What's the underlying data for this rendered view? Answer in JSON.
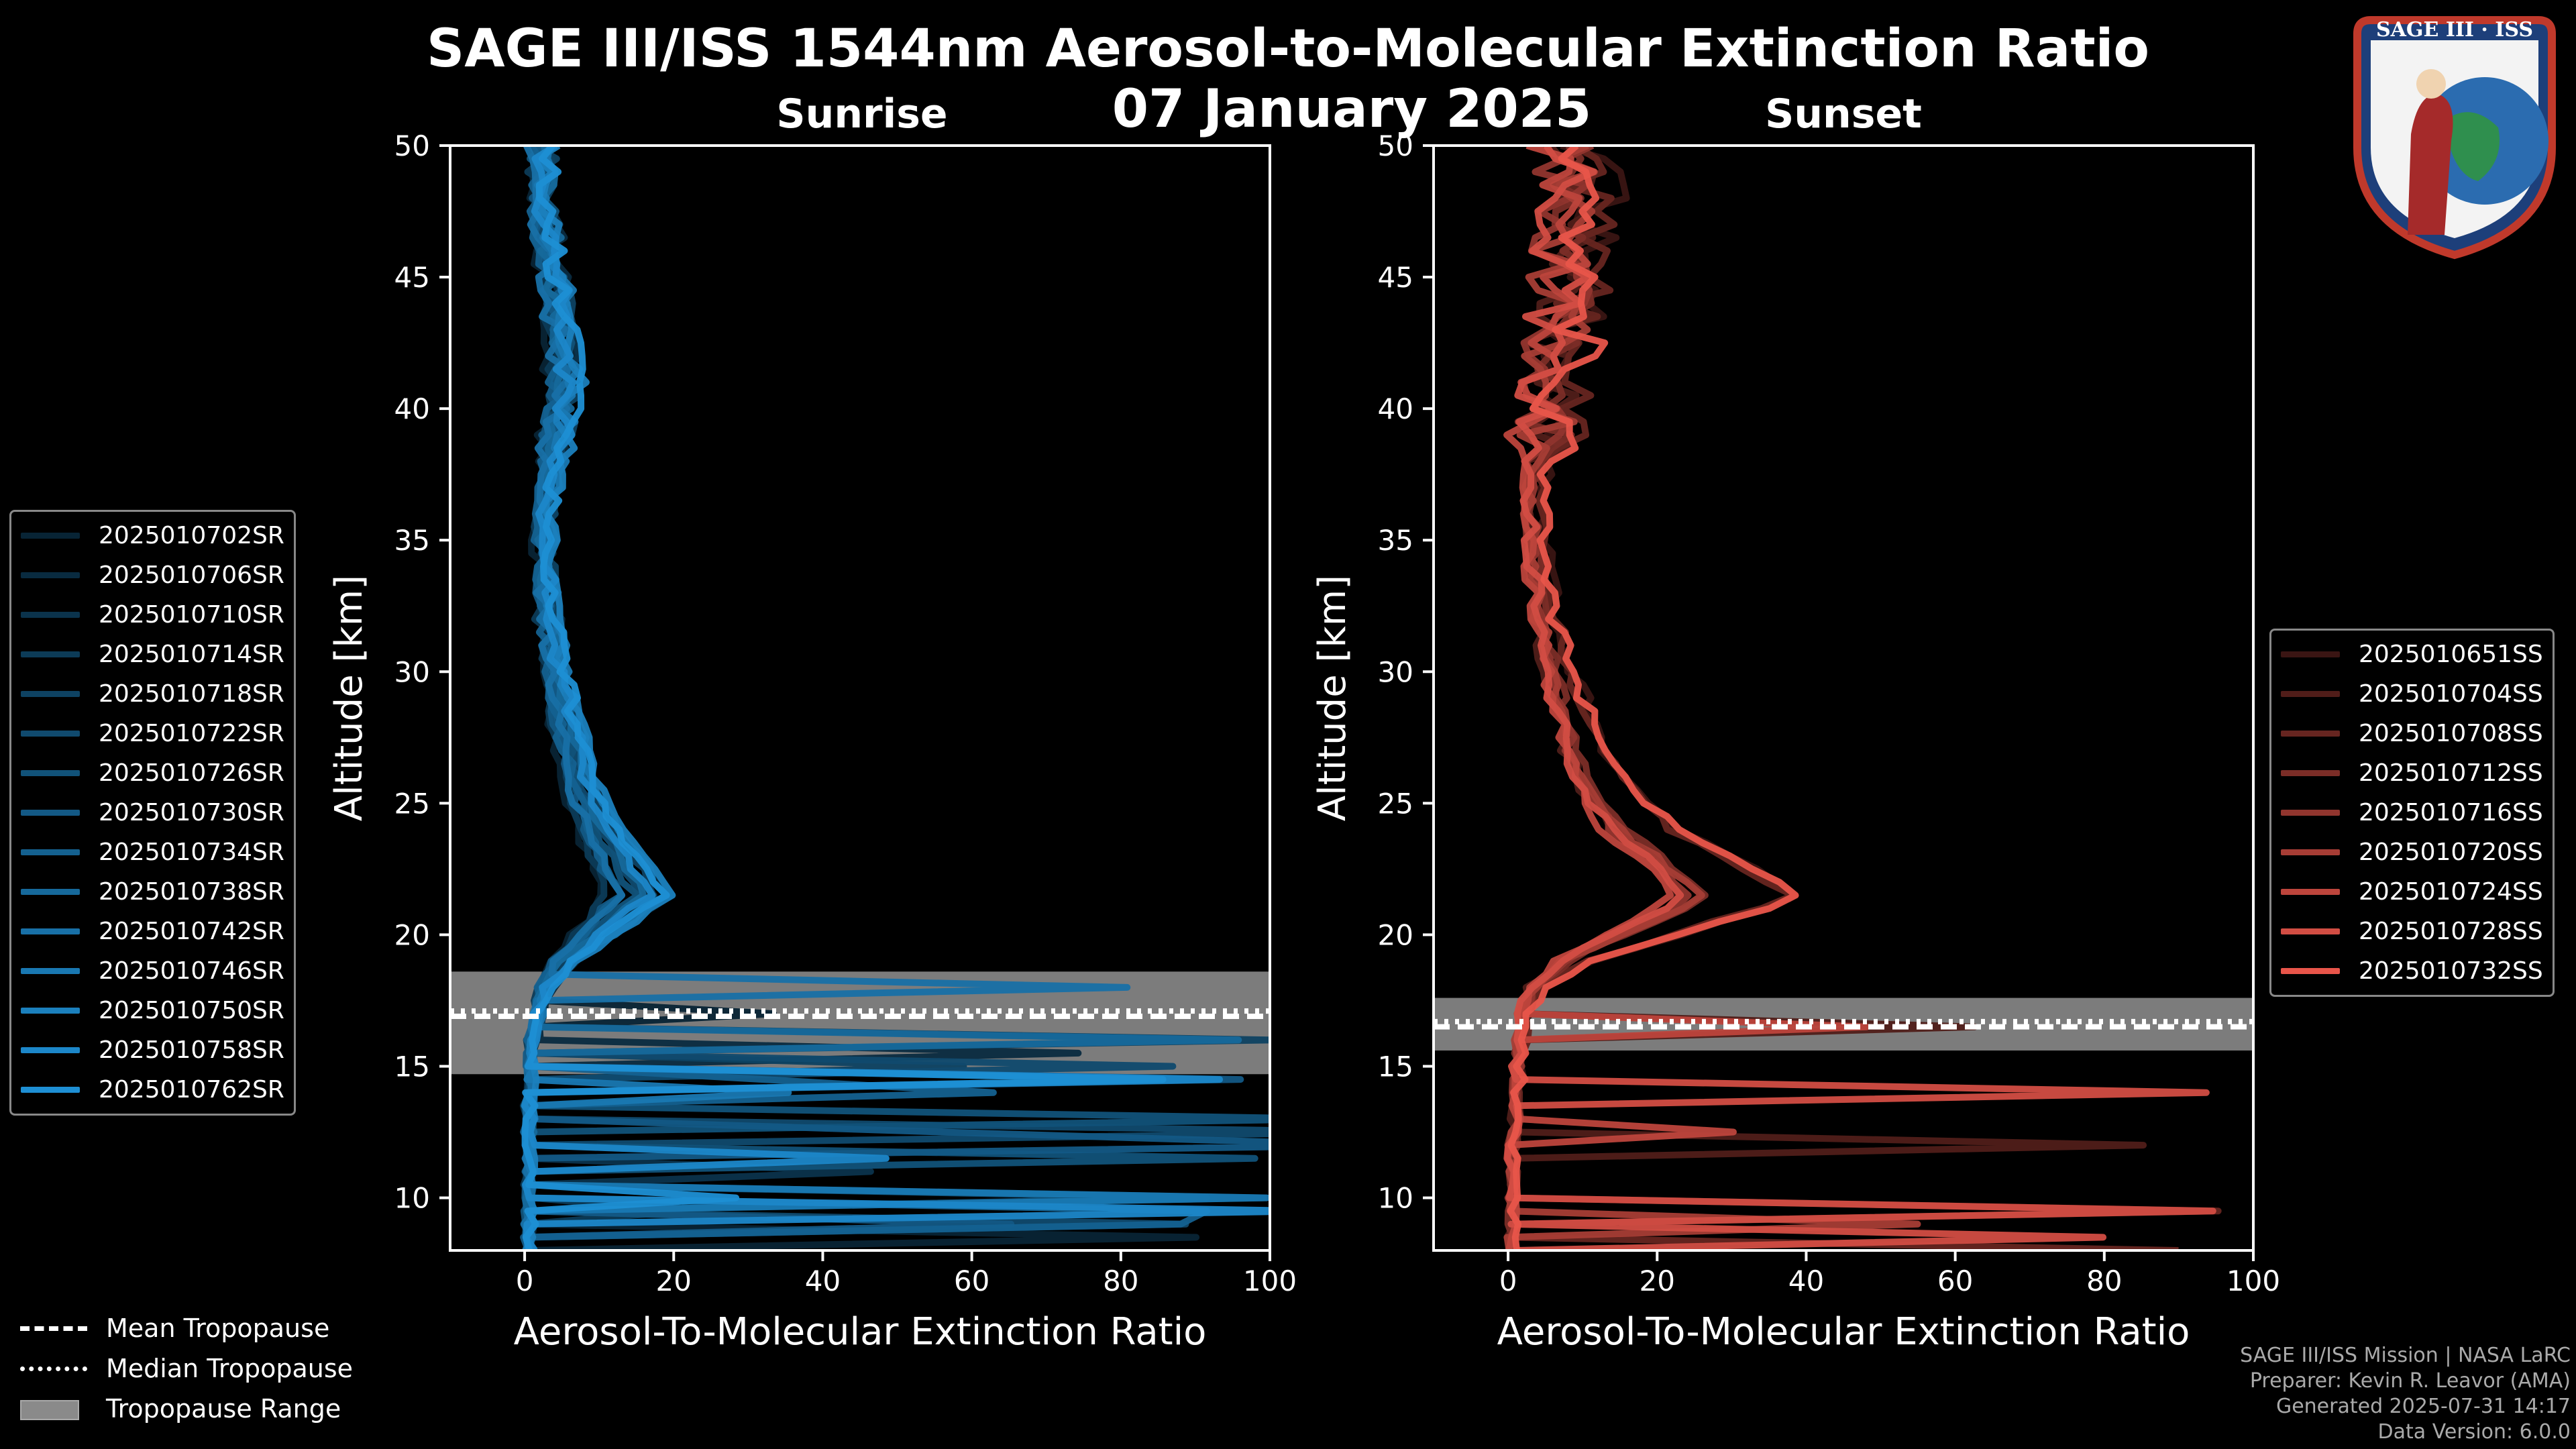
{
  "title": "SAGE III/ISS 1544nm Aerosol-to-Molecular Extinction Ratio",
  "date": "07 January 2025",
  "logo": {
    "name": "SAGE III · ISS"
  },
  "chart_data": [
    {
      "type": "line",
      "subtitle": "Sunrise",
      "xlabel": "Aerosol-To-Molecular Extinction Ratio",
      "ylabel": "Altitude [km]",
      "xlim": [
        -10,
        100
      ],
      "ylim": [
        8,
        50
      ],
      "xticks": [
        "0",
        "20",
        "40",
        "60",
        "80",
        "100"
      ],
      "yticks": [
        "10",
        "15",
        "20",
        "25",
        "30",
        "35",
        "40",
        "45",
        "50"
      ],
      "series_color": "#1e8fd4",
      "tropopause": {
        "mean_km": 16.9,
        "median_km": 17.1,
        "range_km": [
          14.7,
          18.6
        ]
      },
      "profile_shape": [
        {
          "alt": 50,
          "x": 2
        },
        {
          "alt": 48,
          "x": 2
        },
        {
          "alt": 46,
          "x": 3
        },
        {
          "alt": 44,
          "x": 4
        },
        {
          "alt": 42,
          "x": 5
        },
        {
          "alt": 40,
          "x": 4.5
        },
        {
          "alt": 38,
          "x": 3.5
        },
        {
          "alt": 36,
          "x": 2.5
        },
        {
          "alt": 34,
          "x": 2.5
        },
        {
          "alt": 32,
          "x": 3
        },
        {
          "alt": 30,
          "x": 4
        },
        {
          "alt": 28,
          "x": 5.5
        },
        {
          "alt": 26,
          "x": 7
        },
        {
          "alt": 24,
          "x": 10
        },
        {
          "alt": 23,
          "x": 12
        },
        {
          "alt": 22,
          "x": 14
        },
        {
          "alt": 21.5,
          "x": 15
        },
        {
          "alt": 21,
          "x": 13
        },
        {
          "alt": 20,
          "x": 9
        },
        {
          "alt": 19,
          "x": 5
        },
        {
          "alt": 18,
          "x": 2.5
        },
        {
          "alt": 17,
          "x": 1.5
        },
        {
          "alt": 16,
          "x": 1
        },
        {
          "alt": 14,
          "x": 0.5
        },
        {
          "alt": 12,
          "x": 0.5
        },
        {
          "alt": 10,
          "x": 0.5
        },
        {
          "alt": 8,
          "x": 0.5
        }
      ],
      "legend": [
        "2025010702SR",
        "2025010706SR",
        "2025010710SR",
        "2025010714SR",
        "2025010718SR",
        "2025010722SR",
        "2025010726SR",
        "2025010730SR",
        "2025010734SR",
        "2025010738SR",
        "2025010742SR",
        "2025010746SR",
        "2025010750SR",
        "2025010758SR",
        "2025010762SR"
      ]
    },
    {
      "type": "line",
      "subtitle": "Sunset",
      "xlabel": "Aerosol-To-Molecular Extinction Ratio",
      "ylabel": "Altitude [km]",
      "xlim": [
        -10,
        100
      ],
      "ylim": [
        8,
        50
      ],
      "xticks": [
        "0",
        "20",
        "40",
        "60",
        "80",
        "100"
      ],
      "yticks": [
        "10",
        "15",
        "20",
        "25",
        "30",
        "35",
        "40",
        "45",
        "50"
      ],
      "series_color": "#e8554a",
      "tropopause": {
        "mean_km": 16.5,
        "median_km": 16.7,
        "range_km": [
          15.6,
          17.6
        ]
      },
      "profile_shape": [
        {
          "alt": 50,
          "x": 8
        },
        {
          "alt": 48,
          "x": 9
        },
        {
          "alt": 46,
          "x": 8
        },
        {
          "alt": 44,
          "x": 7
        },
        {
          "alt": 42,
          "x": 6
        },
        {
          "alt": 40,
          "x": 5
        },
        {
          "alt": 38,
          "x": 4
        },
        {
          "alt": 36,
          "x": 3.5
        },
        {
          "alt": 34,
          "x": 4
        },
        {
          "alt": 32,
          "x": 5
        },
        {
          "alt": 30,
          "x": 7
        },
        {
          "alt": 28,
          "x": 9
        },
        {
          "alt": 26,
          "x": 12
        },
        {
          "alt": 24,
          "x": 18
        },
        {
          "alt": 23,
          "x": 24
        },
        {
          "alt": 22,
          "x": 29
        },
        {
          "alt": 21.5,
          "x": 31
        },
        {
          "alt": 21,
          "x": 28
        },
        {
          "alt": 20,
          "x": 18
        },
        {
          "alt": 19,
          "x": 9
        },
        {
          "alt": 18,
          "x": 4
        },
        {
          "alt": 17,
          "x": 2
        },
        {
          "alt": 16,
          "x": 1.5
        },
        {
          "alt": 14,
          "x": 1
        },
        {
          "alt": 13,
          "x": 1
        },
        {
          "alt": 12,
          "x": 0.5
        },
        {
          "alt": 10,
          "x": 0.5
        },
        {
          "alt": 8,
          "x": 0.5
        }
      ],
      "legend": [
        "2025010651SS",
        "2025010704SS",
        "2025010708SS",
        "2025010712SS",
        "2025010716SS",
        "2025010720SS",
        "2025010724SS",
        "2025010728SS",
        "2025010732SS"
      ]
    }
  ],
  "tropopause_legend": [
    "Mean Tropopause",
    "Median Tropopause",
    "Tropopause Range"
  ],
  "footer": {
    "line1": "SAGE III/ISS Mission | NASA LaRC",
    "line2": "Preparer: Kevin R. Leavor (AMA)",
    "line3": "Generated 2025-07-31 14:17",
    "line4": "Data Version: 6.0.0"
  }
}
